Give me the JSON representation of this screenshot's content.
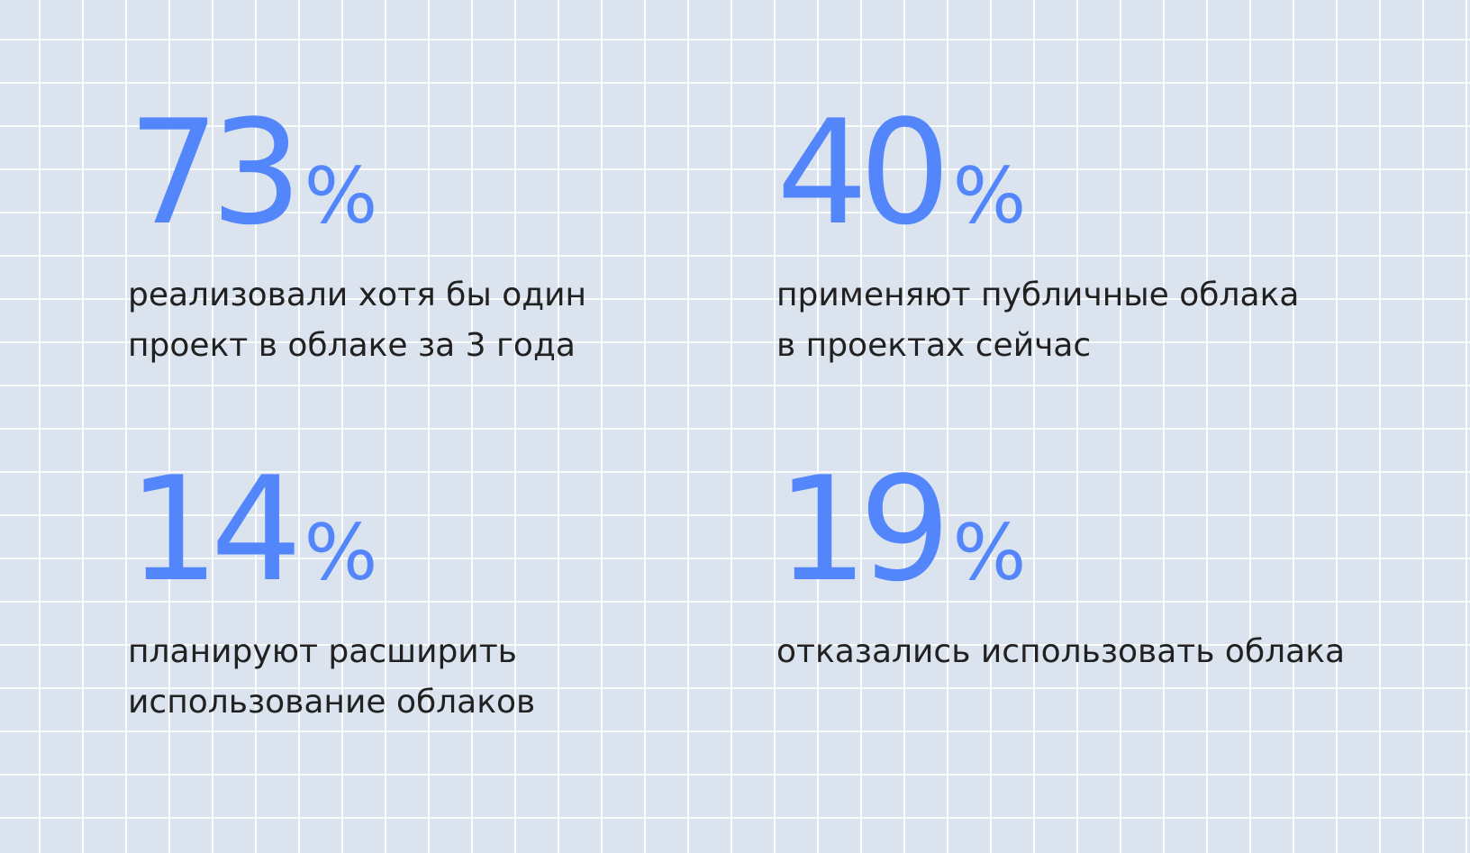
{
  "accent_color": "#5286fa",
  "text_color": "#212121",
  "stats": [
    {
      "value": "73",
      "unit": "%",
      "caption_lines": [
        "реализовали хотя бы один",
        "проект в облаке за 3 года"
      ]
    },
    {
      "value": "40",
      "unit": "%",
      "caption_lines": [
        "применяют публичные облака",
        "в проектах сейчас"
      ]
    },
    {
      "value": "14",
      "unit": "%",
      "caption_lines": [
        "планируют расширить",
        "использование облаков"
      ]
    },
    {
      "value": "19",
      "unit": "%",
      "caption_lines": [
        "отказались использовать облака"
      ]
    }
  ]
}
